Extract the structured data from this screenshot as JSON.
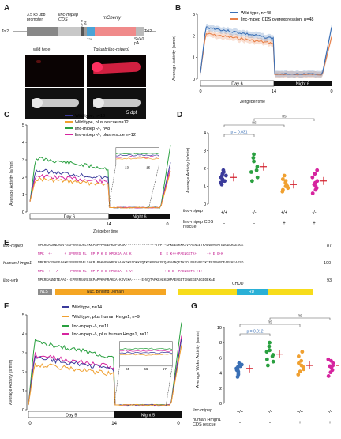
{
  "panels": {
    "A": "A",
    "B": "B",
    "C": "C",
    "D": "D",
    "E": "E",
    "F": "F",
    "G": "G"
  },
  "A": {
    "tol2_left": "Tol2",
    "tol2_right": "Tol2",
    "promoter": "3.5 kb ubb promoter",
    "cds": "linc-mipep CDS",
    "flag": "FLAG",
    "ha": "HA",
    "t2a": "T2A",
    "mcherry": "mCherry",
    "sv40": "SV40 pA",
    "wildtype": "wild type",
    "tg": "Tg(ubb:linc-mipep)",
    "dpf": "5 dpf"
  },
  "B": {
    "ylabel": "Average Activity (s/min)",
    "xlabel": "Zeitgeber time",
    "legend": [
      {
        "name": "Wild type, n=48",
        "color": "#3a6fb5"
      },
      {
        "name": "linc-mipep CDS overexpression, n=48",
        "color": "#e8814a"
      }
    ],
    "yticks": [
      "0",
      "1",
      "2",
      "3"
    ],
    "xticks": [
      "0",
      "14",
      "0"
    ],
    "day": "Day 6",
    "night": "Night 6"
  },
  "C": {
    "ylabel": "Average Activity (s/min)",
    "xlabel": "Zeitgeber time",
    "legend": [
      {
        "name": "Wild type, n=13",
        "color": "#3b3b9b"
      },
      {
        "name": "Wild type, plus rescue  n=12",
        "color": "#f0a030"
      },
      {
        "name": "linc-mipep -/-, n=8",
        "color": "#2aa040"
      },
      {
        "name": "linc-mipep -/-, plus rescue n=12",
        "color": "#d6249f"
      }
    ],
    "yticks": [
      "0",
      "1",
      "2",
      "3",
      "4",
      "5"
    ],
    "xticks": [
      "14",
      "0"
    ],
    "inset_xticks": [
      "13",
      "15"
    ],
    "day": "Day 6",
    "night": "Night 6"
  },
  "D": {
    "ylabel": "Average Activity (s/min)",
    "yticks": [
      "0",
      "1",
      "2",
      "3",
      "4"
    ],
    "pval": "p = 0.031",
    "ns1": "ns",
    "ns2": "ns",
    "row1_label": "linc-mipep",
    "row1": [
      "+/+",
      "-/-",
      "+/+",
      "-/-"
    ],
    "row2_label": "linc-mipep CDS rescue",
    "row2": [
      "-",
      "-",
      "+",
      "+"
    ],
    "colors": [
      "#3b3b9b",
      "#2aa040",
      "#f0a030",
      "#d6249f"
    ]
  },
  "E": {
    "rows": [
      {
        "label": "linc-mipep",
        "seq": "MPKRKAKNNDAEV-SKPRRRSDRLVKKPAPPPAEEPKAPKKKK---------------TPP--KPKEEEKKKEVPAENGETKADDDASATEDGDKKKEDGE",
        "end": "87"
      },
      {
        "label": "",
        "seq": "MPK  ++      + SPRRRS RL  RP P K E KPKKKA AK K              E  E K+++PAENGETK+     ++ E G+K",
        "end": ""
      },
      {
        "label": "human Hmgn1",
        "seq": "MPKRKVSSAEGAAKEEPKRRSARLSAKP-PAKVEAKPKKAAAKDKSSDKKVQTKGKRGAKGKQAEVANQETKEDLPAENGETKTEESPASDEAGEKEAKSD",
        "end": "100"
      },
      {
        "label": "",
        "seq": "MPK  ++  A      PRRRS RL  RP P K E KPKKKA  K V+              ++ E E  PAENGETK +E+",
        "end": ""
      },
      {
        "label": "linc-wrb",
        "seq": "MPKRKANNDTEAAG--EPRRRSARLSKPAPPKAPRAKKA-KDVEKA-----EHVQTAPKEAEKKKPAENGETKNNEGEAGGDDEKAE",
        "end": "93"
      }
    ],
    "domains": {
      "nls": "NLS",
      "nbd": "Nuc. Binding Domain",
      "chud": "CHUD",
      "rd": "RD"
    }
  },
  "F": {
    "ylabel": "Average Activity (s/min)",
    "legend": [
      {
        "name": "Wild type, n=14",
        "color": "#3b3b9b"
      },
      {
        "name": "Wild type, plus human Hmgn1, n=9",
        "color": "#f0a030"
      },
      {
        "name": "linc-mipep -/-, n=11",
        "color": "#2aa040"
      },
      {
        "name": "linc-mipep -/-, plus human Hmgn1, n=11",
        "color": "#d6249f"
      }
    ],
    "yticks": [
      "0",
      "1",
      "2",
      "3",
      "4",
      "5"
    ],
    "xticks": [
      "0",
      "14",
      "0"
    ],
    "inset_xticks": [
      "65",
      "66",
      "67"
    ],
    "day": "Day 5",
    "night": "Night 5"
  },
  "G": {
    "ylabel": "Average Wake Activity (s/min)",
    "yticks": [
      "0",
      "2",
      "4",
      "6",
      "8",
      "10"
    ],
    "pval": "p = 0.012",
    "ns1": "ns",
    "ns2": "ns",
    "row1_label": "linc-mipep",
    "row1": [
      "+/+",
      "-/-",
      "+/+",
      "-/-"
    ],
    "row2_label": "human Hmgn1 CDS rescue",
    "row2": [
      "-",
      "-",
      "+",
      "+"
    ],
    "colors": [
      "#3a6fb5",
      "#2aa040",
      "#f0a030",
      "#d6249f"
    ]
  }
}
